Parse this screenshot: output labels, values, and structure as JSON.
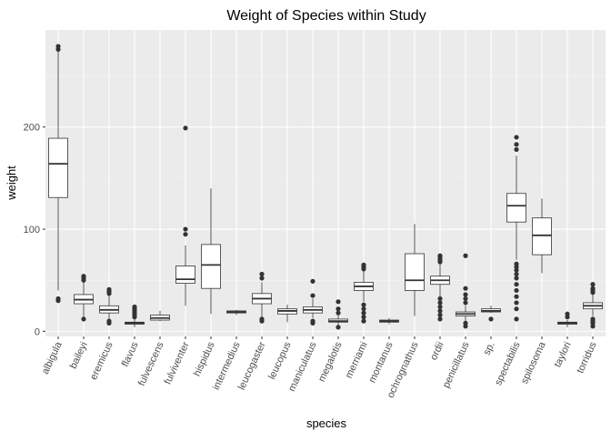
{
  "chart_data": {
    "type": "boxplot",
    "title": "Weight of Species within Study",
    "xlabel": "species",
    "ylabel": "weight",
    "ylim": [
      -5,
      295
    ],
    "yticks": [
      0,
      100,
      200
    ],
    "grid": true,
    "legend": "none",
    "colors": {
      "panel_bg": "#ebebeb",
      "grid_major": "#ffffff",
      "grid_minor": "#f5f5f5",
      "box_fill": "#ffffff",
      "box_line": "#333333",
      "outlier": "#333333",
      "axis_text": "#4d4d4d",
      "title_text": "#000000"
    },
    "categories": [
      "albigula",
      "baileyi",
      "eremicus",
      "flavus",
      "fulvescens",
      "fulviventer",
      "hispidus",
      "intermedius",
      "leucogaster",
      "leucopus",
      "maniculatus",
      "megalotis",
      "merriami",
      "montanus",
      "ochrognathus",
      "ordii",
      "penicillatus",
      "sp.",
      "spectabilis",
      "spilosoma",
      "taylori",
      "torridus"
    ],
    "boxes": [
      {
        "species": "albigula",
        "min": 40,
        "q1": 131,
        "median": 164,
        "q3": 189,
        "max": 275,
        "outliers": [
          30,
          32,
          276,
          279
        ]
      },
      {
        "species": "baileyi",
        "min": 14,
        "q1": 27,
        "median": 31,
        "q3": 36,
        "max": 48,
        "outliers": [
          12,
          50,
          52,
          54
        ]
      },
      {
        "species": "eremicus",
        "min": 12,
        "q1": 18,
        "median": 21,
        "q3": 25,
        "max": 35,
        "outliers": [
          8,
          10,
          37,
          39,
          41
        ]
      },
      {
        "species": "flavus",
        "min": 4,
        "q1": 7,
        "median": 8,
        "q3": 9,
        "max": 13,
        "outliers": [
          14,
          16,
          18,
          20,
          22,
          24
        ]
      },
      {
        "species": "fulvescens",
        "min": 10,
        "q1": 11,
        "median": 13,
        "q3": 16,
        "max": 20,
        "outliers": []
      },
      {
        "species": "fulviventer",
        "min": 25,
        "q1": 47,
        "median": 51,
        "q3": 64,
        "max": 84,
        "outliers": [
          95,
          100,
          199
        ]
      },
      {
        "species": "hispidus",
        "min": 17,
        "q1": 42,
        "median": 65,
        "q3": 85,
        "max": 140,
        "outliers": []
      },
      {
        "species": "intermedius",
        "min": 16,
        "q1": 18,
        "median": 19,
        "q3": 20,
        "max": 21,
        "outliers": []
      },
      {
        "species": "leucogaster",
        "min": 14,
        "q1": 27,
        "median": 32,
        "q3": 37,
        "max": 48,
        "outliers": [
          10,
          12,
          52,
          56
        ]
      },
      {
        "species": "leucopus",
        "min": 9,
        "q1": 17,
        "median": 20,
        "q3": 22,
        "max": 26,
        "outliers": []
      },
      {
        "species": "maniculatus",
        "min": 13,
        "q1": 18,
        "median": 21,
        "q3": 24,
        "max": 32,
        "outliers": [
          8,
          10,
          35,
          49
        ]
      },
      {
        "species": "megalotis",
        "min": 6,
        "q1": 9,
        "median": 10,
        "q3": 12,
        "max": 16,
        "outliers": [
          4,
          18,
          22,
          29
        ]
      },
      {
        "species": "merriami",
        "min": 29,
        "q1": 40,
        "median": 44,
        "q3": 48,
        "max": 59,
        "outliers": [
          10,
          14,
          18,
          22,
          26,
          61,
          63,
          65
        ]
      },
      {
        "species": "montanus",
        "min": 7,
        "q1": 9,
        "median": 10,
        "q3": 11,
        "max": 13,
        "outliers": []
      },
      {
        "species": "ochrognathus",
        "min": 15,
        "q1": 40,
        "median": 50,
        "q3": 76,
        "max": 105,
        "outliers": []
      },
      {
        "species": "ordii",
        "min": 33,
        "q1": 46,
        "median": 50,
        "q3": 54,
        "max": 66,
        "outliers": [
          12,
          16,
          20,
          24,
          28,
          32,
          68,
          70,
          72,
          74
        ]
      },
      {
        "species": "penicillatus",
        "min": 10,
        "q1": 15,
        "median": 17,
        "q3": 19,
        "max": 25,
        "outliers": [
          5,
          8,
          28,
          32,
          36,
          42,
          74
        ]
      },
      {
        "species": "sp.",
        "min": 18,
        "q1": 19,
        "median": 20,
        "q3": 22,
        "max": 25,
        "outliers": [
          12
        ]
      },
      {
        "species": "spectabilis",
        "min": 70,
        "q1": 107,
        "median": 123,
        "q3": 135,
        "max": 172,
        "outliers": [
          12,
          22,
          28,
          34,
          40,
          46,
          52,
          56,
          60,
          63,
          66,
          178,
          183,
          190
        ]
      },
      {
        "species": "spilosoma",
        "min": 57,
        "q1": 75,
        "median": 94,
        "q3": 111,
        "max": 130,
        "outliers": []
      },
      {
        "species": "taylori",
        "min": 4,
        "q1": 7,
        "median": 8,
        "q3": 9,
        "max": 11,
        "outliers": [
          14,
          17
        ]
      },
      {
        "species": "torridus",
        "min": 15,
        "q1": 22,
        "median": 25,
        "q3": 28,
        "max": 36,
        "outliers": [
          5,
          8,
          10,
          12,
          38,
          40,
          42,
          46
        ]
      }
    ]
  }
}
